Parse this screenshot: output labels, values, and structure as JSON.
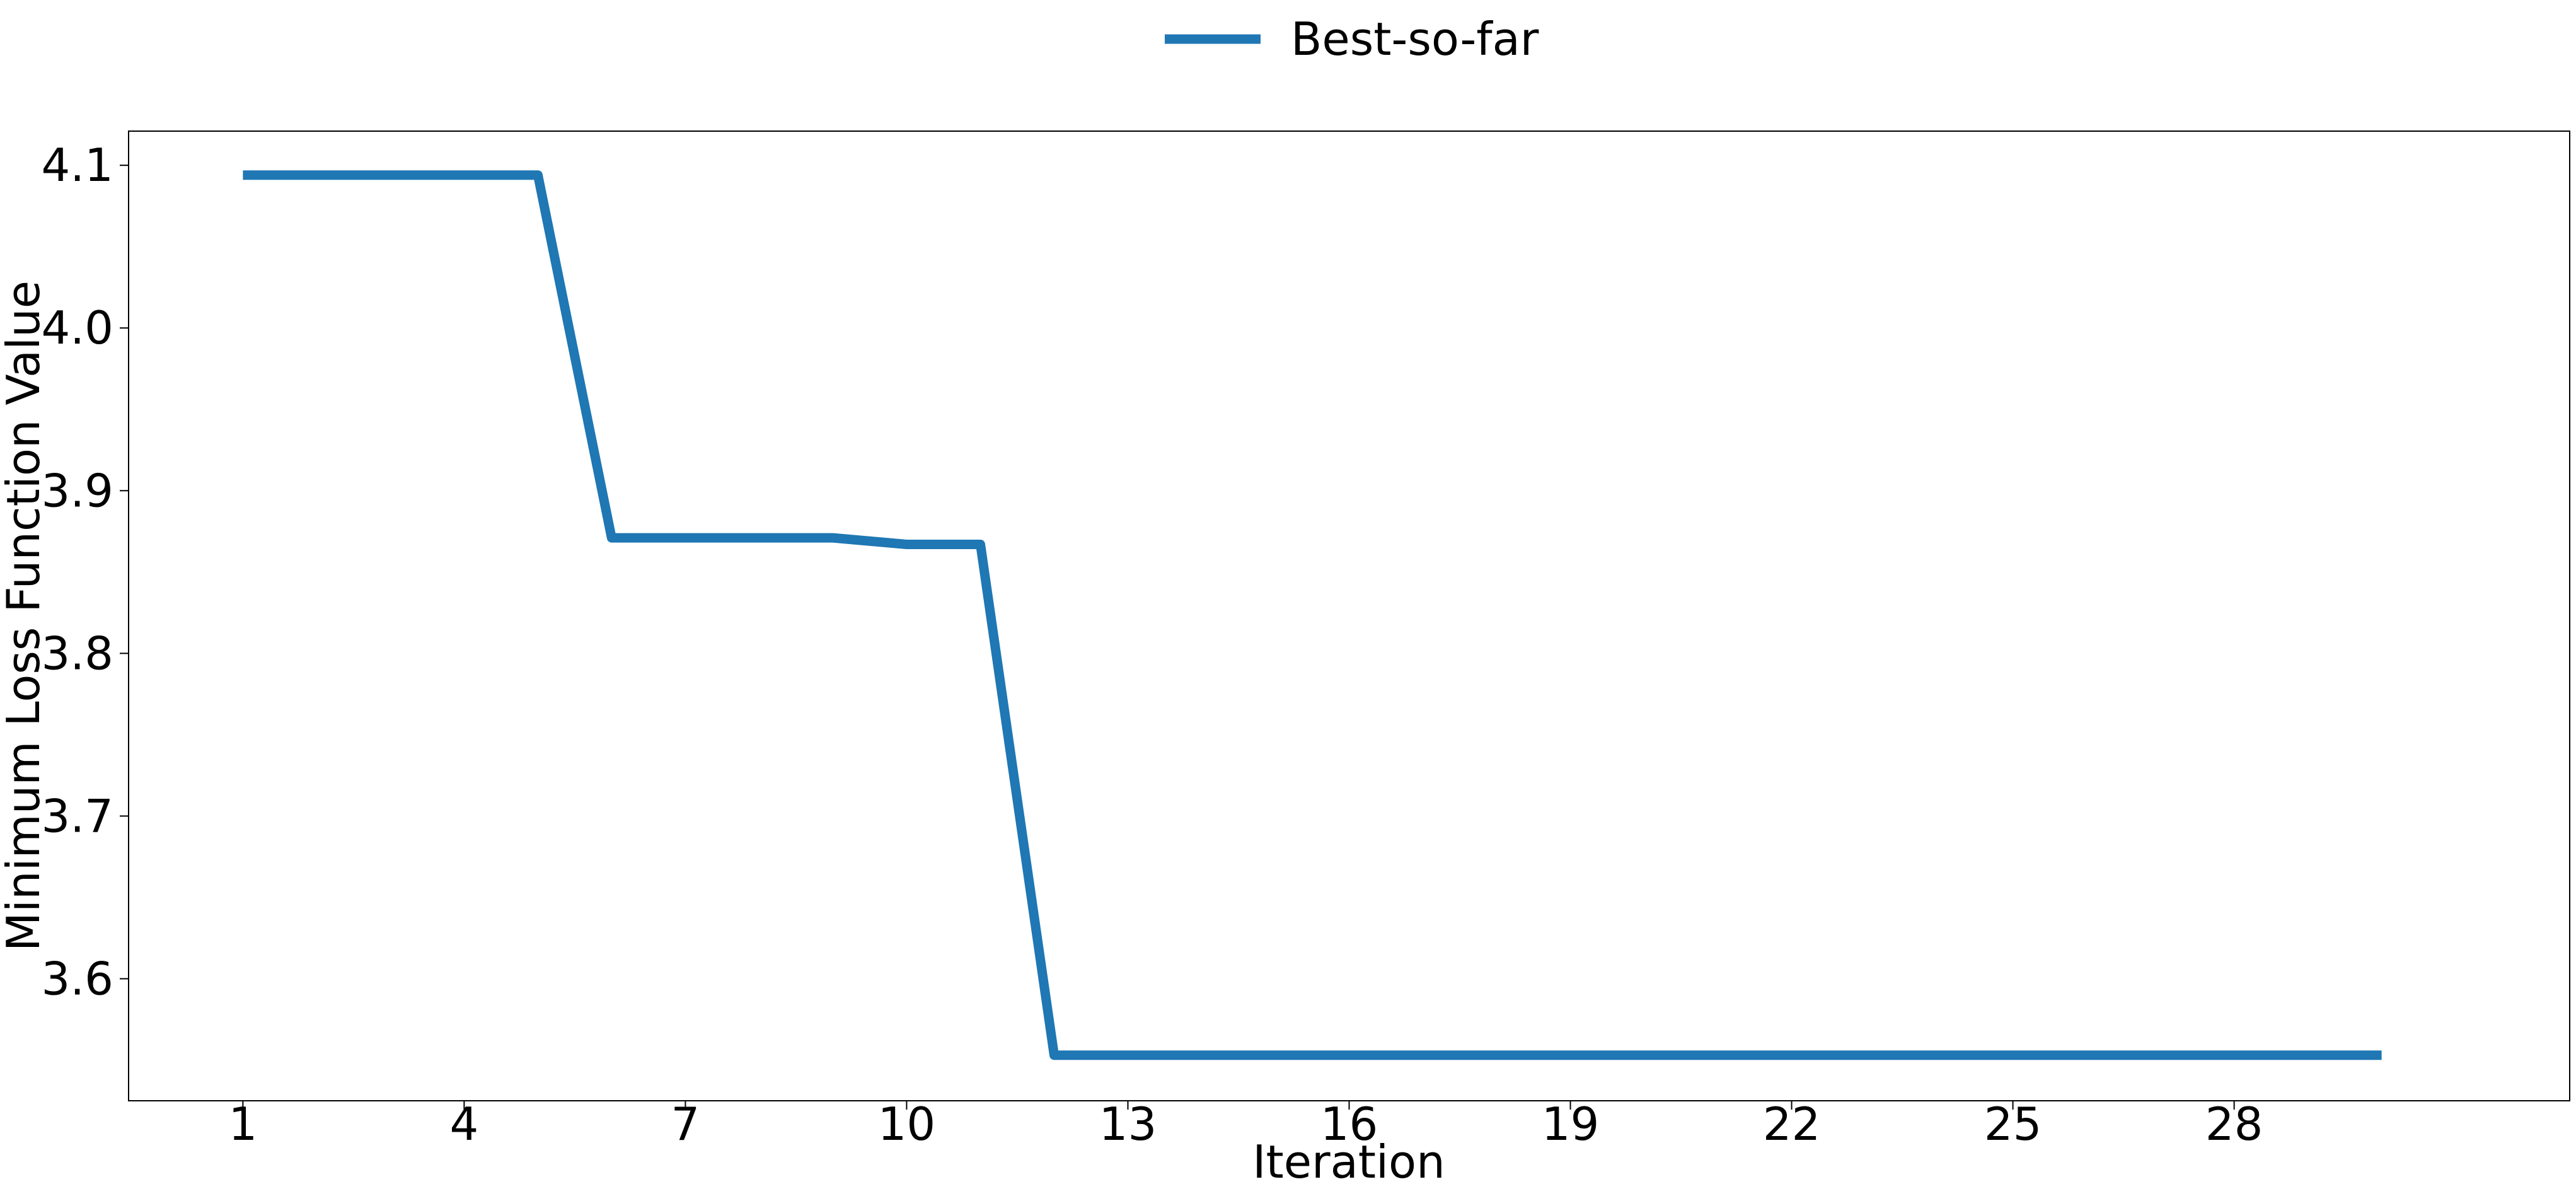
{
  "chart_data": {
    "type": "line",
    "title": "",
    "xlabel": "Iteration",
    "ylabel": "Minimum Loss Function Value",
    "xlim": [
      -0.55,
      32.55
    ],
    "ylim": [
      3.525,
      4.121
    ],
    "x_ticks": [
      1,
      4,
      7,
      10,
      13,
      16,
      19,
      22,
      25,
      28
    ],
    "y_ticks": [
      3.6,
      3.7,
      3.8,
      3.9,
      4.0,
      4.1
    ],
    "x_tick_labels": [
      "1",
      "4",
      "7",
      "10",
      "13",
      "16",
      "19",
      "22",
      "25",
      "28"
    ],
    "y_tick_labels": [
      "3.6",
      "3.7",
      "3.8",
      "3.9",
      "4.0",
      "4.1"
    ],
    "grid": false,
    "legend_position": "top-center",
    "series": [
      {
        "name": "Best-so-far",
        "color": "#1f77b4",
        "x": [
          1,
          2,
          3,
          4,
          5,
          6,
          7,
          8,
          9,
          10,
          11,
          12,
          13,
          14,
          15,
          16,
          17,
          18,
          19,
          20,
          21,
          22,
          23,
          24,
          25,
          26,
          27,
          28,
          29,
          30
        ],
        "y": [
          4.094,
          4.094,
          4.094,
          4.094,
          4.094,
          3.871,
          3.871,
          3.871,
          3.871,
          3.867,
          3.867,
          3.553,
          3.553,
          3.553,
          3.553,
          3.553,
          3.553,
          3.553,
          3.553,
          3.553,
          3.553,
          3.553,
          3.553,
          3.553,
          3.553,
          3.553,
          3.553,
          3.553,
          3.553,
          3.553
        ]
      }
    ]
  }
}
